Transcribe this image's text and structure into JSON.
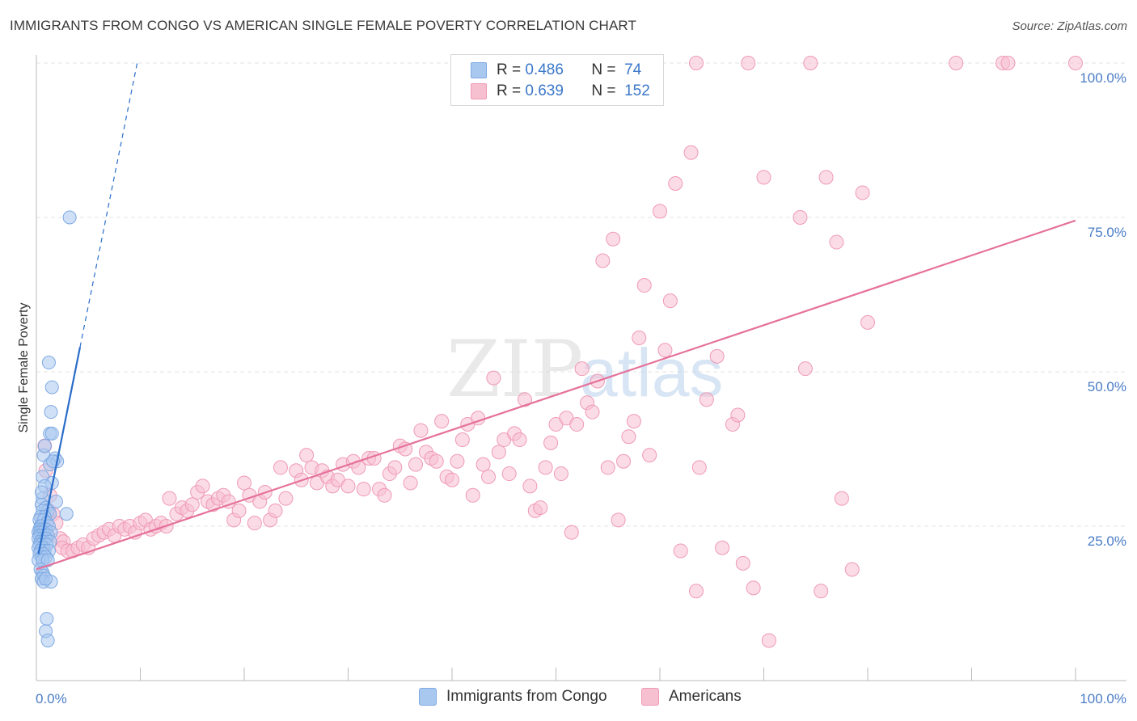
{
  "title": "IMMIGRANTS FROM CONGO VS AMERICAN SINGLE FEMALE POVERTY CORRELATION CHART",
  "source": "Source: ZipAtlas.com",
  "watermark": {
    "zip": "ZIP",
    "atlas": "atlas"
  },
  "colors": {
    "blue_fill": "#a9c8f0",
    "blue_stroke": "#7ea9e2",
    "blue_line": "#2a6dc9",
    "pink_fill": "#f7c0d1",
    "pink_stroke": "#ef9ab5",
    "pink_line": "#e5719b",
    "tick": "#4a7cc7",
    "grid": "#e3e3e3"
  },
  "legend_top": [
    {
      "r_label": "R =",
      "r_value": "0.486",
      "n_label": "N =",
      "n_value": "74",
      "color": "#a9c8f0"
    },
    {
      "r_label": "R =",
      "r_value": "0.639",
      "n_label": "N =",
      "n_value": "152",
      "color": "#f7c0d1"
    }
  ],
  "legend_bottom": [
    {
      "label": "Immigrants from Congo",
      "color": "#a9c8f0"
    },
    {
      "label": "Americans",
      "color": "#f7c0d1"
    }
  ],
  "chart_data": {
    "type": "scatter",
    "xlabel": "",
    "ylabel": "Single Female Poverty",
    "xlim": [
      0,
      100
    ],
    "ylim": [
      0,
      100
    ],
    "x_ticks": [
      "0.0%",
      "100.0%"
    ],
    "y_ticks": [
      "25.0%",
      "50.0%",
      "75.0%",
      "100.0%"
    ],
    "y_tick_values": [
      25,
      50,
      75,
      100
    ],
    "grid": true,
    "series": [
      {
        "name": "Immigrants from Congo",
        "color": "#a9c8f0",
        "trend": {
          "x": [
            0.2,
            4.2
          ],
          "y": [
            20.5,
            54.0
          ],
          "dashed_to": [
            9.7,
            100
          ]
        },
        "points": [
          [
            3.2,
            75.0
          ],
          [
            1.2,
            51.5
          ],
          [
            1.5,
            47.5
          ],
          [
            1.4,
            43.5
          ],
          [
            1.3,
            40.0
          ],
          [
            1.5,
            40.0
          ],
          [
            0.7,
            36.5
          ],
          [
            1.8,
            36.0
          ],
          [
            2.0,
            35.5
          ],
          [
            1.3,
            35.0
          ],
          [
            0.6,
            33.0
          ],
          [
            1.5,
            32.0
          ],
          [
            0.8,
            31.5
          ],
          [
            0.6,
            29.5
          ],
          [
            0.5,
            28.5
          ],
          [
            0.9,
            28.0
          ],
          [
            1.1,
            27.5
          ],
          [
            0.6,
            27.5
          ],
          [
            1.3,
            27.0
          ],
          [
            2.9,
            27.0
          ],
          [
            0.4,
            26.5
          ],
          [
            0.8,
            26.5
          ],
          [
            0.3,
            26.0
          ],
          [
            0.7,
            26.0
          ],
          [
            1.0,
            25.5
          ],
          [
            0.4,
            25.0
          ],
          [
            0.5,
            25.0
          ],
          [
            1.2,
            25.0
          ],
          [
            0.3,
            24.5
          ],
          [
            0.6,
            24.5
          ],
          [
            0.9,
            24.5
          ],
          [
            0.2,
            24.0
          ],
          [
            0.4,
            24.0
          ],
          [
            0.7,
            24.0
          ],
          [
            1.4,
            24.0
          ],
          [
            0.3,
            23.5
          ],
          [
            0.5,
            23.5
          ],
          [
            0.8,
            23.5
          ],
          [
            1.1,
            23.5
          ],
          [
            0.2,
            23.0
          ],
          [
            0.6,
            23.0
          ],
          [
            0.9,
            23.0
          ],
          [
            0.4,
            22.5
          ],
          [
            0.7,
            22.5
          ],
          [
            1.3,
            22.5
          ],
          [
            0.3,
            22.0
          ],
          [
            0.5,
            22.0
          ],
          [
            1.0,
            22.0
          ],
          [
            0.2,
            21.5
          ],
          [
            0.6,
            21.5
          ],
          [
            0.8,
            21.0
          ],
          [
            0.4,
            21.0
          ],
          [
            1.2,
            21.0
          ],
          [
            0.3,
            20.5
          ],
          [
            0.7,
            20.5
          ],
          [
            0.5,
            20.0
          ],
          [
            0.9,
            20.0
          ],
          [
            0.2,
            19.5
          ],
          [
            0.6,
            19.5
          ],
          [
            1.1,
            19.5
          ],
          [
            0.4,
            18.0
          ],
          [
            0.6,
            17.5
          ],
          [
            0.7,
            17.0
          ],
          [
            0.5,
            16.5
          ],
          [
            0.7,
            16.0
          ],
          [
            1.4,
            16.0
          ],
          [
            0.9,
            16.5
          ],
          [
            1.0,
            10.0
          ],
          [
            0.9,
            8.0
          ],
          [
            1.1,
            6.5
          ],
          [
            1.6,
            35.5
          ],
          [
            0.8,
            38.0
          ],
          [
            1.9,
            29.0
          ],
          [
            0.5,
            30.5
          ]
        ]
      },
      {
        "name": "Americans",
        "color": "#f7c0d1",
        "trend": {
          "x": [
            0,
            100
          ],
          "y": [
            18.0,
            74.5
          ]
        },
        "points": [
          [
            0.8,
            38.0
          ],
          [
            0.9,
            34.0
          ],
          [
            1.3,
            30.0
          ],
          [
            1.2,
            27.5
          ],
          [
            1.6,
            27.0
          ],
          [
            1.9,
            25.5
          ],
          [
            1.0,
            23.5
          ],
          [
            2.3,
            23.0
          ],
          [
            2.6,
            22.5
          ],
          [
            2.5,
            21.5
          ],
          [
            3.0,
            21.0
          ],
          [
            3.5,
            21.0
          ],
          [
            4.0,
            21.5
          ],
          [
            4.5,
            22.0
          ],
          [
            5.0,
            21.5
          ],
          [
            5.5,
            23.0
          ],
          [
            6.0,
            23.5
          ],
          [
            6.5,
            24.0
          ],
          [
            7.0,
            24.5
          ],
          [
            7.5,
            23.5
          ],
          [
            8.0,
            25.0
          ],
          [
            8.5,
            24.5
          ],
          [
            9.0,
            25.0
          ],
          [
            9.5,
            24.0
          ],
          [
            10.0,
            25.5
          ],
          [
            10.5,
            26.0
          ],
          [
            11.0,
            24.5
          ],
          [
            11.5,
            25.0
          ],
          [
            12.0,
            25.5
          ],
          [
            12.5,
            25.0
          ],
          [
            12.8,
            29.5
          ],
          [
            13.5,
            27.0
          ],
          [
            14.0,
            28.0
          ],
          [
            14.5,
            27.5
          ],
          [
            15.0,
            28.5
          ],
          [
            15.5,
            30.5
          ],
          [
            16.0,
            31.5
          ],
          [
            16.5,
            29.0
          ],
          [
            17.0,
            28.5
          ],
          [
            17.5,
            29.5
          ],
          [
            18.0,
            30.0
          ],
          [
            18.5,
            29.0
          ],
          [
            19.0,
            26.0
          ],
          [
            19.5,
            27.5
          ],
          [
            20.0,
            32.0
          ],
          [
            20.5,
            30.0
          ],
          [
            21.0,
            25.5
          ],
          [
            21.5,
            29.0
          ],
          [
            22.0,
            30.5
          ],
          [
            22.5,
            26.0
          ],
          [
            23.0,
            27.5
          ],
          [
            23.5,
            34.5
          ],
          [
            24.0,
            29.5
          ],
          [
            25.0,
            34.0
          ],
          [
            25.5,
            32.5
          ],
          [
            26.0,
            36.5
          ],
          [
            26.5,
            34.5
          ],
          [
            27.0,
            32.0
          ],
          [
            27.5,
            34.0
          ],
          [
            28.0,
            33.0
          ],
          [
            28.5,
            31.5
          ],
          [
            29.0,
            32.5
          ],
          [
            29.5,
            35.0
          ],
          [
            30.0,
            31.5
          ],
          [
            30.5,
            35.5
          ],
          [
            31.0,
            34.5
          ],
          [
            31.5,
            31.0
          ],
          [
            32.0,
            36.0
          ],
          [
            32.5,
            36.0
          ],
          [
            33.0,
            31.0
          ],
          [
            33.5,
            30.0
          ],
          [
            34.0,
            33.5
          ],
          [
            34.5,
            34.5
          ],
          [
            35.0,
            38.0
          ],
          [
            35.5,
            37.5
          ],
          [
            36.0,
            32.0
          ],
          [
            36.5,
            35.0
          ],
          [
            37.0,
            40.5
          ],
          [
            37.5,
            37.0
          ],
          [
            38.0,
            36.0
          ],
          [
            38.5,
            35.5
          ],
          [
            39.0,
            42.0
          ],
          [
            39.5,
            33.0
          ],
          [
            40.0,
            32.5
          ],
          [
            40.5,
            35.5
          ],
          [
            41.0,
            39.0
          ],
          [
            41.5,
            41.5
          ],
          [
            42.0,
            30.0
          ],
          [
            42.5,
            42.5
          ],
          [
            43.0,
            35.0
          ],
          [
            43.5,
            33.0
          ],
          [
            44.0,
            49.0
          ],
          [
            44.5,
            37.0
          ],
          [
            45.0,
            39.0
          ],
          [
            45.5,
            33.5
          ],
          [
            46.0,
            40.0
          ],
          [
            46.5,
            39.0
          ],
          [
            47.0,
            45.5
          ],
          [
            47.5,
            31.5
          ],
          [
            48.0,
            27.5
          ],
          [
            48.5,
            28.0
          ],
          [
            49.0,
            34.5
          ],
          [
            49.5,
            38.5
          ],
          [
            50.0,
            41.5
          ],
          [
            50.5,
            33.5
          ],
          [
            51.0,
            42.5
          ],
          [
            51.5,
            24.0
          ],
          [
            52.0,
            41.5
          ],
          [
            52.5,
            50.5
          ],
          [
            53.0,
            45.0
          ],
          [
            53.5,
            43.5
          ],
          [
            54.0,
            48.5
          ],
          [
            54.5,
            68.0
          ],
          [
            55.0,
            34.5
          ],
          [
            55.5,
            71.5
          ],
          [
            56.0,
            26.0
          ],
          [
            56.5,
            35.5
          ],
          [
            57.0,
            39.5
          ],
          [
            57.5,
            42.0
          ],
          [
            58.0,
            55.5
          ],
          [
            58.5,
            64.0
          ],
          [
            59.0,
            36.5
          ],
          [
            60.0,
            76.0
          ],
          [
            60.5,
            53.5
          ],
          [
            61.0,
            61.5
          ],
          [
            61.5,
            80.5
          ],
          [
            62.0,
            21.0
          ],
          [
            63.0,
            85.5
          ],
          [
            63.5,
            14.5
          ],
          [
            63.8,
            34.5
          ],
          [
            64.5,
            45.5
          ],
          [
            65.5,
            52.5
          ],
          [
            66.0,
            21.5
          ],
          [
            67.0,
            41.5
          ],
          [
            67.5,
            43.0
          ],
          [
            68.0,
            19.0
          ],
          [
            68.5,
            100.0
          ],
          [
            69.0,
            15.0
          ],
          [
            70.0,
            81.5
          ],
          [
            70.5,
            6.5
          ],
          [
            73.5,
            75.0
          ],
          [
            74.0,
            50.5
          ],
          [
            74.5,
            100.0
          ],
          [
            75.5,
            14.5
          ],
          [
            76.0,
            81.5
          ],
          [
            77.0,
            71.0
          ],
          [
            77.5,
            29.5
          ],
          [
            78.5,
            18.0
          ],
          [
            79.5,
            79.0
          ],
          [
            80.0,
            58.0
          ],
          [
            88.5,
            100.0
          ],
          [
            93.0,
            100.0
          ],
          [
            63.5,
            100.0
          ],
          [
            56.0,
            100.0
          ],
          [
            93.5,
            100.0
          ],
          [
            100.0,
            100.0
          ]
        ]
      }
    ]
  }
}
